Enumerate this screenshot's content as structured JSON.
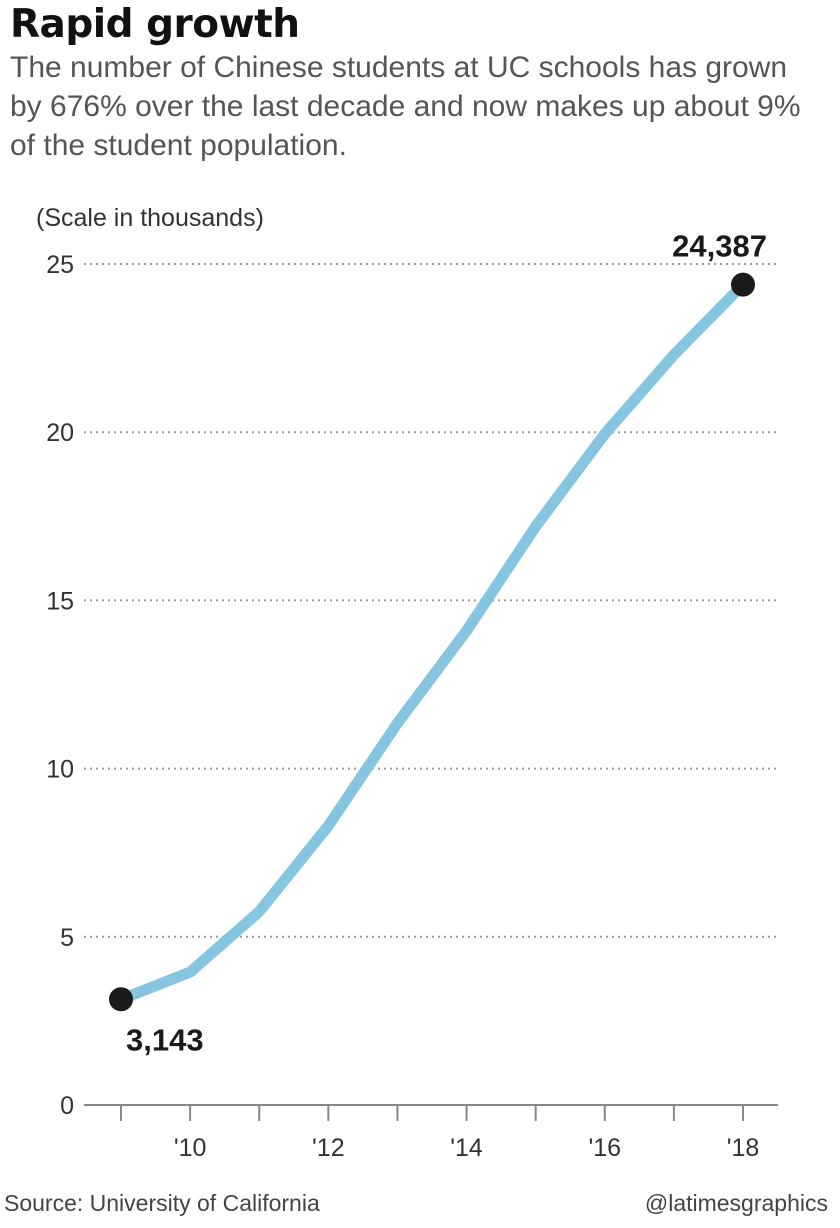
{
  "header": {
    "title": "Rapid growth",
    "subtitle": "The number of Chinese students at UC schools has grown by 676% over the last decade and now makes up about 9% of the student population."
  },
  "chart_data": {
    "type": "line",
    "title": "Rapid growth",
    "unit_label": "(Scale in thousands)",
    "x": [
      2009,
      2010,
      2011,
      2012,
      2013,
      2014,
      2015,
      2016,
      2017,
      2018
    ],
    "x_tick_values": [
      2010,
      2012,
      2014,
      2016,
      2018
    ],
    "x_tick_labels": [
      "'10",
      "'12",
      "'14",
      "'16",
      "'18"
    ],
    "series": [
      {
        "name": "Chinese students at UC schools",
        "values": [
          3.143,
          3.95,
          5.75,
          8.3,
          11.35,
          14.1,
          17.2,
          19.95,
          22.3,
          24.387
        ]
      }
    ],
    "y_ticks": [
      0,
      5,
      10,
      15,
      20,
      25
    ],
    "ylim": [
      0,
      25
    ],
    "xlim": [
      2009,
      2018
    ],
    "grid": true,
    "xlabel": "",
    "ylabel": "",
    "annotations": [
      {
        "label": "3,143",
        "x": 2009,
        "y": 3.143,
        "placement": "below"
      },
      {
        "label": "24,387",
        "x": 2018,
        "y": 24.387,
        "placement": "above"
      }
    ],
    "line_color": "#85c5e0",
    "marker_color": "#1a1a1a"
  },
  "footer": {
    "source": "Source: University of California",
    "credit": "@latimesgraphics"
  }
}
